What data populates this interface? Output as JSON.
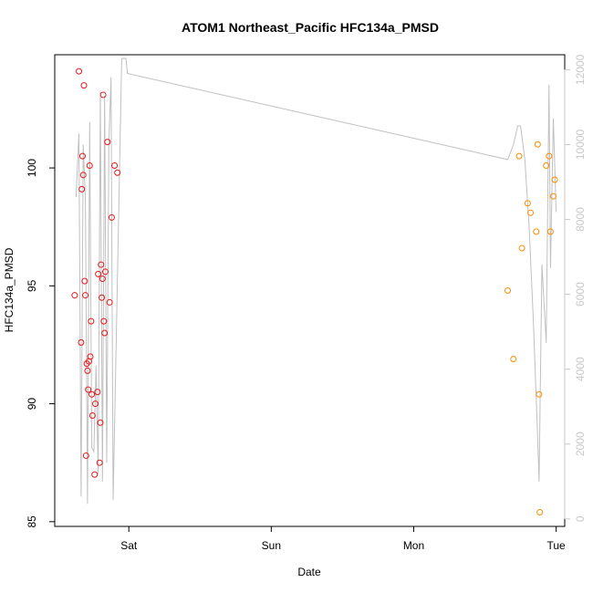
{
  "chart_data": {
    "type": "scatter",
    "title": "ATOM1 Northeast_Pacific HFC134a_PMSD",
    "xlabel": "Date",
    "ylabel": "HFC134a_PMSD",
    "x_axis": {
      "unit": "days",
      "range": [
        -0.52,
        3.06
      ],
      "ticks": [
        {
          "value": 0,
          "label": "Sat"
        },
        {
          "value": 1,
          "label": "Sun"
        },
        {
          "value": 2,
          "label": "Mon"
        },
        {
          "value": 3,
          "label": "Tue"
        }
      ]
    },
    "y_axis_left": {
      "range": [
        84.8,
        104.8
      ],
      "ticks": [
        85,
        90,
        95,
        100
      ]
    },
    "y_axis_right": {
      "range": [
        -200,
        12400
      ],
      "ticks": [
        0,
        2000,
        4000,
        6000,
        8000,
        10000,
        12000
      ],
      "color": "#c8c8c8"
    },
    "series": [
      {
        "kind": "line",
        "axis": "right",
        "color": "#c0c0c0",
        "points": [
          [
            -0.37,
            8600
          ],
          [
            -0.35,
            10300
          ],
          [
            -0.335,
            600
          ],
          [
            -0.32,
            10000
          ],
          [
            -0.305,
            8500
          ],
          [
            -0.29,
            400
          ],
          [
            -0.275,
            10600
          ],
          [
            -0.26,
            1900
          ],
          [
            -0.245,
            1800
          ],
          [
            -0.23,
            4100
          ],
          [
            -0.215,
            1200
          ],
          [
            -0.2,
            11400
          ],
          [
            -0.185,
            1000
          ],
          [
            -0.17,
            11300
          ],
          [
            -0.155,
            1500
          ],
          [
            -0.14,
            10000
          ],
          [
            -0.125,
            11800
          ],
          [
            -0.11,
            500
          ],
          [
            -0.05,
            12300
          ],
          [
            -0.02,
            12300
          ],
          [
            -0.01,
            11900
          ],
          [
            2.66,
            9600
          ],
          [
            2.7,
            10000
          ],
          [
            2.73,
            10500
          ],
          [
            2.75,
            10500
          ],
          [
            2.78,
            9600
          ],
          [
            2.81,
            7800
          ],
          [
            2.84,
            5300
          ],
          [
            2.87,
            2200
          ],
          [
            2.88,
            1000
          ],
          [
            2.9,
            6800
          ],
          [
            2.93,
            4700
          ],
          [
            2.95,
            11600
          ],
          [
            2.96,
            6700
          ],
          [
            2.98,
            10700
          ],
          [
            3.0,
            8200
          ]
        ]
      },
      {
        "kind": "points",
        "axis": "left",
        "color": "#e41a1c",
        "points": [
          [
            -0.38,
            94.6
          ],
          [
            -0.35,
            104.1
          ],
          [
            -0.335,
            92.6
          ],
          [
            -0.33,
            99.1
          ],
          [
            -0.325,
            100.5
          ],
          [
            -0.32,
            99.7
          ],
          [
            -0.315,
            103.5
          ],
          [
            -0.31,
            95.2
          ],
          [
            -0.305,
            94.6
          ],
          [
            -0.3,
            87.8
          ],
          [
            -0.295,
            91.7
          ],
          [
            -0.29,
            91.4
          ],
          [
            -0.285,
            90.6
          ],
          [
            -0.28,
            91.8
          ],
          [
            -0.275,
            100.1
          ],
          [
            -0.27,
            92.0
          ],
          [
            -0.265,
            93.5
          ],
          [
            -0.26,
            90.4
          ],
          [
            -0.255,
            89.5
          ],
          [
            -0.24,
            87.0
          ],
          [
            -0.235,
            90.0
          ],
          [
            -0.22,
            90.5
          ],
          [
            -0.215,
            95.5
          ],
          [
            -0.205,
            87.5
          ],
          [
            -0.2,
            89.2
          ],
          [
            -0.195,
            95.9
          ],
          [
            -0.19,
            94.5
          ],
          [
            -0.185,
            95.3
          ],
          [
            -0.18,
            103.1
          ],
          [
            -0.175,
            93.5
          ],
          [
            -0.17,
            93.0
          ],
          [
            -0.165,
            95.6
          ],
          [
            -0.15,
            101.1
          ],
          [
            -0.135,
            94.3
          ],
          [
            -0.12,
            97.9
          ],
          [
            -0.1,
            100.1
          ],
          [
            -0.08,
            99.8
          ]
        ]
      },
      {
        "kind": "points",
        "axis": "left",
        "color": "#ff8c00",
        "points": [
          [
            2.66,
            94.8
          ],
          [
            2.7,
            91.9
          ],
          [
            2.74,
            100.5
          ],
          [
            2.76,
            96.6
          ],
          [
            2.8,
            98.5
          ],
          [
            2.82,
            98.1
          ],
          [
            2.86,
            97.3
          ],
          [
            2.87,
            101.0
          ],
          [
            2.88,
            90.4
          ],
          [
            2.885,
            85.4
          ],
          [
            2.93,
            100.1
          ],
          [
            2.95,
            100.5
          ],
          [
            2.96,
            97.3
          ],
          [
            2.98,
            98.8
          ],
          [
            2.99,
            99.5
          ]
        ]
      }
    ]
  }
}
